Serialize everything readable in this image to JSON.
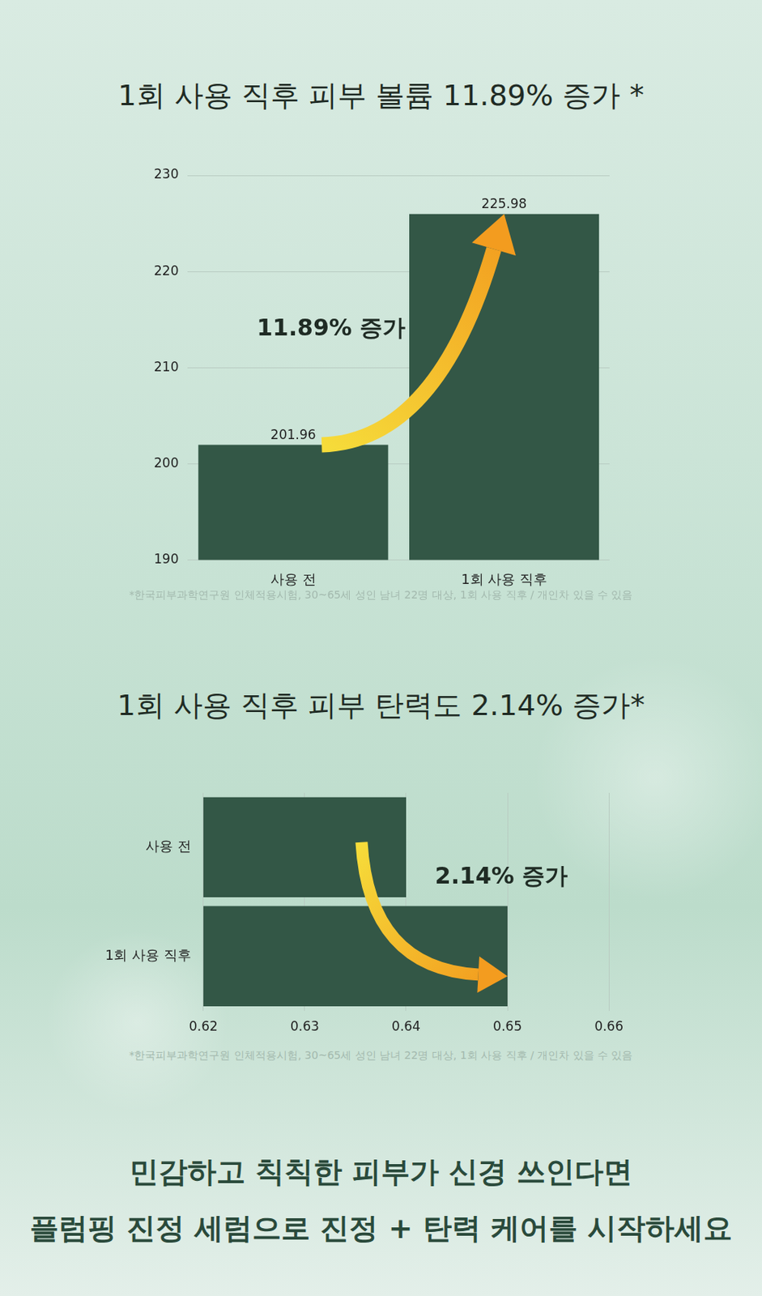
{
  "chart_data": [
    {
      "type": "bar",
      "title": "1회 사용 직후 피부 볼륨 11.89% 증가 *",
      "categories": [
        "사용 전",
        "1회 사용 직후"
      ],
      "values": [
        201.96,
        225.98
      ],
      "color": "#335746",
      "ylim": [
        190,
        230
      ],
      "yticks": [
        190,
        200,
        210,
        220,
        230
      ],
      "grid": true,
      "data_labels": true,
      "annotation": "11.89% 증가",
      "footnote": "*한국피부과학연구원 인체적용시험, 30~65세 성인 남녀 22명 대상, 1회 사용 직후 / 개인차 있을 수 있음"
    },
    {
      "type": "bar",
      "orientation": "horizontal",
      "title": "1회 사용 직후 피부 탄력도 2.14% 증가*",
      "categories": [
        "사용 전",
        "1회 사용 직후"
      ],
      "values": [
        0.64,
        0.65
      ],
      "color": "#335746",
      "xlim": [
        0.62,
        0.66
      ],
      "xticks": [
        0.62,
        0.63,
        0.64,
        0.65,
        0.66
      ],
      "grid": true,
      "data_labels": false,
      "annotation": "2.14% 증가",
      "footnote": "*한국피부과학연구원 인체적용시험, 30~65세 성인 남녀 22명 대상, 1회 사용 직후 / 개인차 있을 수 있음"
    }
  ],
  "tagline": [
    "민감하고 칙칙한 피부가 신경 쓰인다면",
    "플럼핑 진정 세럼으로 진정 + 탄력 케어를 시작하세요"
  ]
}
